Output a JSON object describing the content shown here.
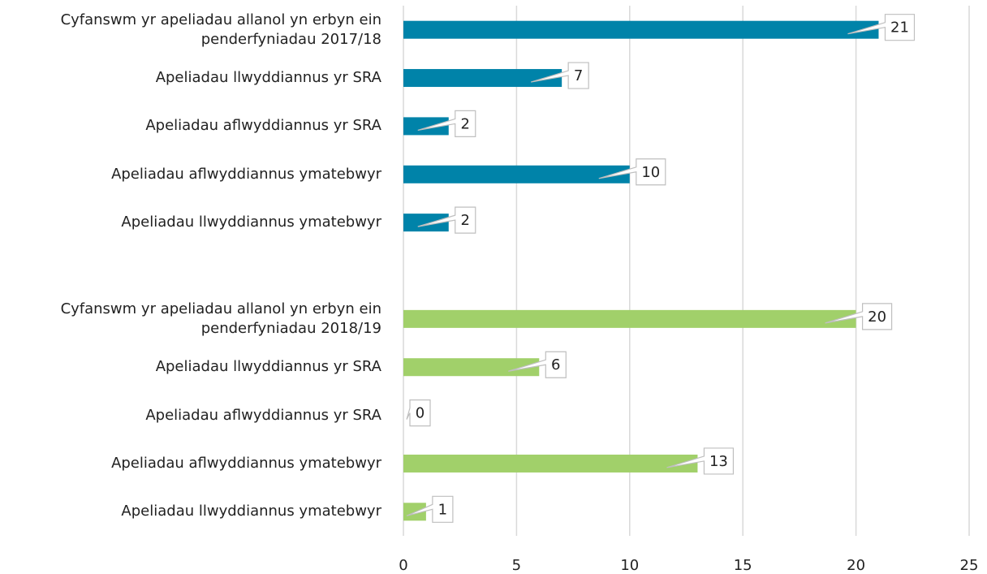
{
  "chart_data": {
    "type": "barh",
    "categories": [
      "Cyfanswm yr apeliadau allanol yn erbyn ein\npenderfyniadau 2017/18",
      "Apeliadau llwyddiannus yr SRA",
      "Apeliadau aflwyddiannus yr SRA",
      "Apeliadau aflwyddiannus ymatebwyr",
      "Apeliadau llwyddiannus ymatebwyr",
      null,
      "Cyfanswm yr apeliadau allanol yn erbyn ein\npenderfyniadau 2018/19",
      "Apeliadau llwyddiannus yr SRA",
      "Apeliadau aflwyddiannus yr SRA",
      "Apeliadau aflwyddiannus ymatebwyr",
      "Apeliadau llwyddiannus ymatebwyr"
    ],
    "values": [
      21,
      7,
      2,
      10,
      2,
      null,
      20,
      6,
      0,
      13,
      1
    ],
    "colors": [
      "#0083a9",
      "#0083a9",
      "#0083a9",
      "#0083a9",
      "#0083a9",
      null,
      "#a1d06a",
      "#a1d06a",
      "#a1d06a",
      "#a1d06a",
      "#a1d06a"
    ],
    "xlim": [
      0,
      25
    ],
    "xticks": [
      0,
      5,
      10,
      15,
      20,
      25
    ],
    "grid": true
  }
}
